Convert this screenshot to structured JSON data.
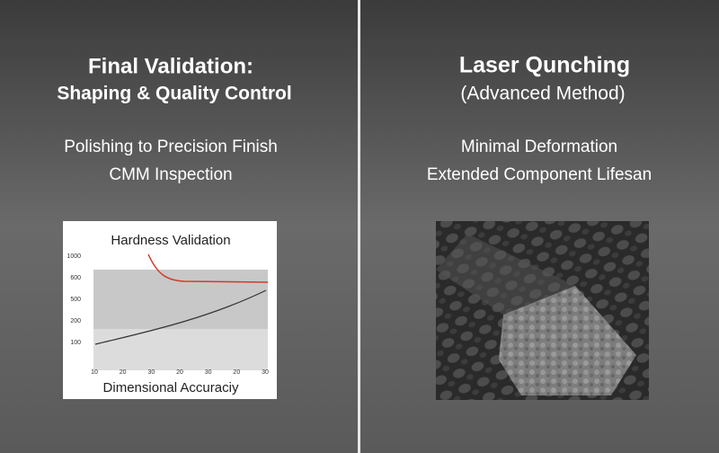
{
  "left": {
    "title": "Final Validation:",
    "subtitle": "Shaping & Quality Control",
    "lines": [
      "Polishing to Precision Finish",
      "CMM Inspection"
    ],
    "figure": {
      "title": "Hardness Validation",
      "xlabel": "Dimensional Accuraciy",
      "ytick_labels": [
        "1000",
        "600",
        "500",
        "200",
        "100"
      ],
      "xtick_labels": [
        "10",
        "20",
        "30",
        "20",
        "30",
        "20",
        "30"
      ]
    }
  },
  "right": {
    "title": "Laser Qunching",
    "subtitle": "(Advanced Method)",
    "lines": [
      "Minimal Deformation",
      "Extended Component Lifesan"
    ]
  }
}
